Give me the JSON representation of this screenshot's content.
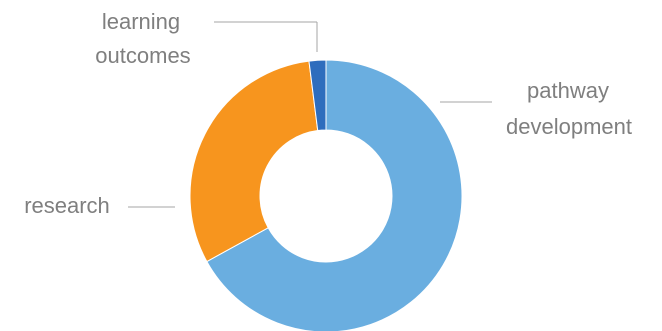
{
  "chart_data": {
    "type": "pie",
    "variant": "doughnut",
    "title": "",
    "legend": "none",
    "categories": [
      "pathway development",
      "research",
      "learning outcomes"
    ],
    "values": [
      67,
      31,
      2
    ],
    "colors": [
      "#6aaee0",
      "#f7951e",
      "#2e6dbd"
    ],
    "label_lines": {
      "pathway development": [
        "pathway",
        "development"
      ],
      "research": [
        "research"
      ],
      "learning outcomes": [
        "learning",
        "outcomes"
      ]
    }
  }
}
